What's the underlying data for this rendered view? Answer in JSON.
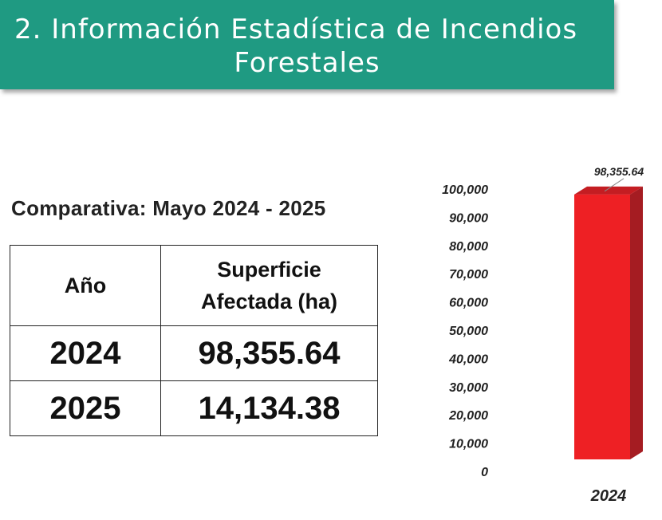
{
  "header": {
    "title_line1": "2. Información Estadística de Incendios",
    "title_line2": "Forestales",
    "color": "#1f9a82"
  },
  "subtitle": "Comparativa: Mayo 2024 - 2025",
  "table": {
    "headers": [
      "Año",
      "Superficie Afectada (ha)"
    ],
    "rows": [
      [
        "2024",
        "98,355.64"
      ],
      [
        "2025",
        "14,134.38"
      ]
    ]
  },
  "chart_data": {
    "type": "bar",
    "categories": [
      "2024"
    ],
    "values": [
      98355.64
    ],
    "data_labels": [
      "98,355.64"
    ],
    "yticks": [
      "0",
      "10,000",
      "20,000",
      "30,000",
      "40,000",
      "50,000",
      "60,000",
      "70,000",
      "80,000",
      "90,000",
      "100,000"
    ],
    "ylim": [
      0,
      100000
    ],
    "bar_color": "#ee2024",
    "bar_side_color": "#a51c22",
    "grid": false
  }
}
